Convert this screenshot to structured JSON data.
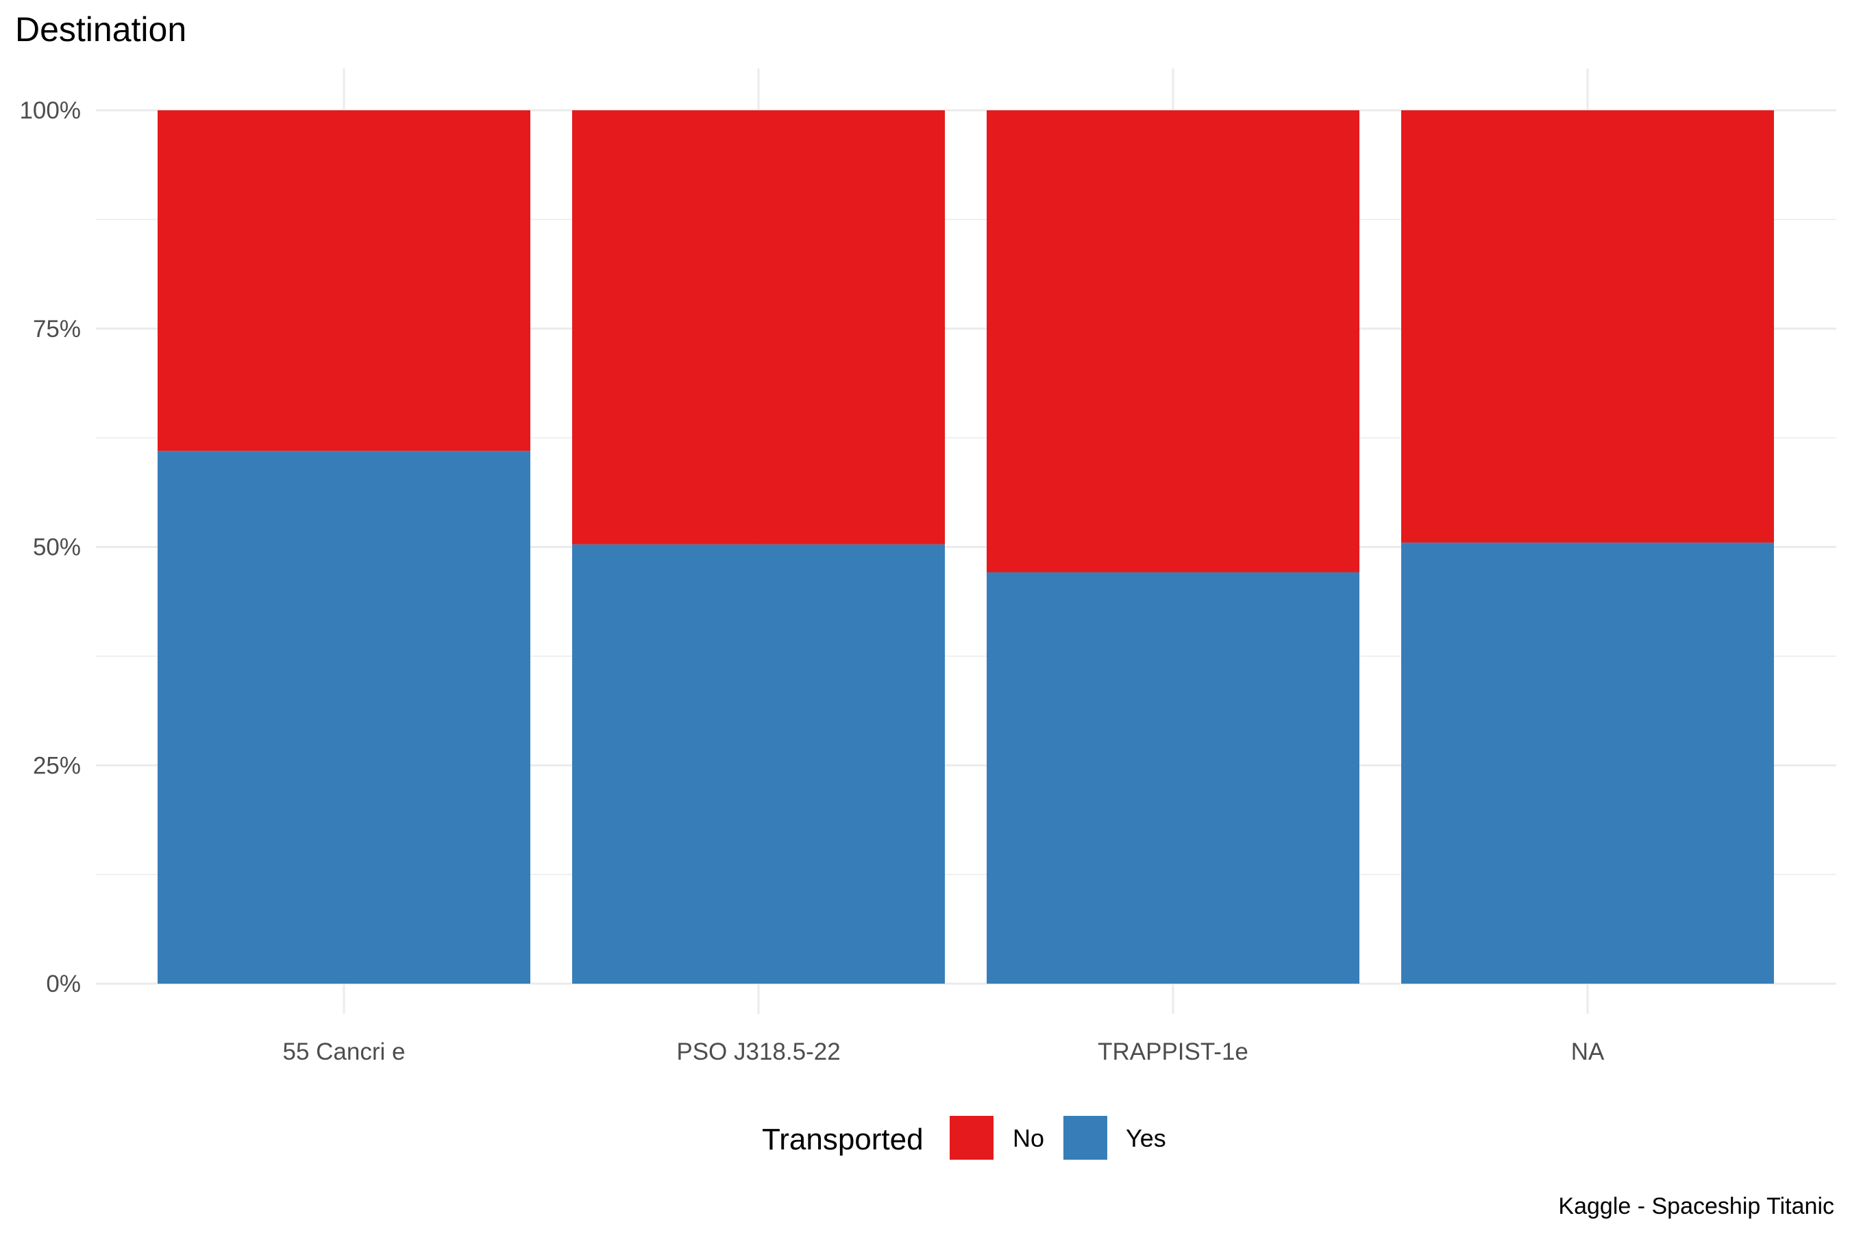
{
  "chart_data": {
    "type": "bar",
    "stacked": true,
    "normalized": true,
    "title": "Destination",
    "caption": "Kaggle - Spaceship Titanic",
    "categories": [
      "55 Cancri e",
      "PSO J318.5-22",
      "TRAPPIST-1e",
      "NA"
    ],
    "series": [
      {
        "name": "No",
        "color": "#E41A1C",
        "values": [
          0.39,
          0.497,
          0.529,
          0.495
        ]
      },
      {
        "name": "Yes",
        "color": "#377EB8",
        "values": [
          0.61,
          0.503,
          0.471,
          0.505
        ]
      }
    ],
    "y_ticks": [
      "0%",
      "25%",
      "50%",
      "75%",
      "100%"
    ],
    "ylim": [
      0,
      1
    ],
    "legend": {
      "title": "Transported",
      "position": "bottom",
      "items": [
        {
          "label": "No",
          "color": "#E41A1C"
        },
        {
          "label": "Yes",
          "color": "#377EB8"
        }
      ]
    },
    "grid": true,
    "grid_color": "#EBEBEB",
    "tick_color": "#4D4D4D",
    "background": "#FFFFFF"
  }
}
